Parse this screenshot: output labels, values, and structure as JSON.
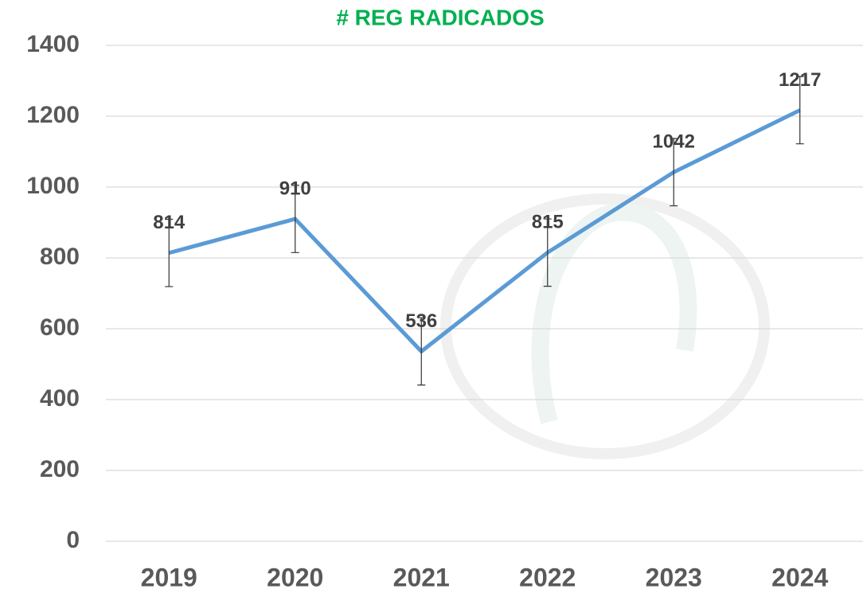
{
  "chart_data": {
    "type": "line",
    "title": "# REG RADICADOS",
    "categories": [
      "2019",
      "2020",
      "2021",
      "2022",
      "2023",
      "2024"
    ],
    "series": [
      {
        "name": "# REG RADICADOS",
        "color": "#5b9bd5",
        "values": [
          814,
          910,
          536,
          815,
          1042,
          1217
        ],
        "errors": [
          95,
          95,
          95,
          95,
          95,
          95
        ]
      }
    ],
    "ylim": [
      0,
      1400
    ],
    "yticks": [
      0,
      200,
      400,
      600,
      800,
      1000,
      1200,
      1400
    ],
    "grid": true
  }
}
